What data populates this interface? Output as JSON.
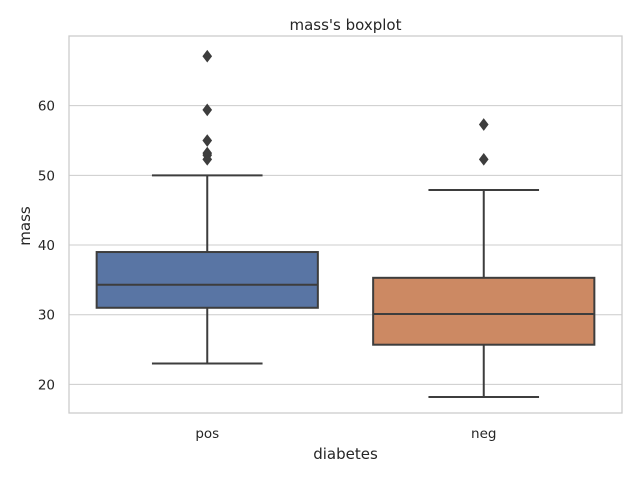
{
  "chart_data": {
    "type": "boxplot",
    "title": "mass's boxplot",
    "xlabel": "diabetes",
    "ylabel": "mass",
    "ylim": [
      15.9,
      70.0
    ],
    "yticks": [
      20,
      30,
      40,
      50,
      60
    ],
    "grid": true,
    "categories": [
      "pos",
      "neg"
    ],
    "colors": [
      "#5975a4",
      "#cc8963"
    ],
    "boxes": [
      {
        "category": "pos",
        "whisker_low": 23.0,
        "q1": 31.0,
        "median": 34.3,
        "q3": 39.0,
        "whisker_high": 50.0,
        "outliers": [
          67.1,
          59.4,
          55.0,
          53.2,
          52.9,
          52.3
        ]
      },
      {
        "category": "neg",
        "whisker_low": 18.2,
        "q1": 25.7,
        "median": 30.1,
        "q3": 35.3,
        "whisker_high": 47.9,
        "outliers": [
          57.3,
          52.3
        ]
      }
    ]
  }
}
